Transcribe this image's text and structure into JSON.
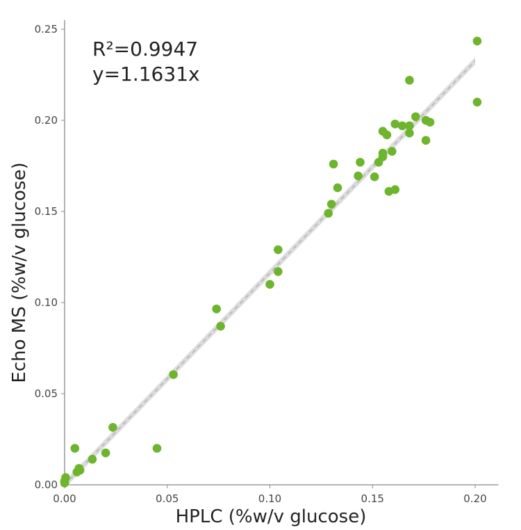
{
  "chart_data": {
    "type": "scatter",
    "xlabel": "HPLC (%w/v glucose)",
    "ylabel": "Echo MS (%w/v glucose)",
    "xlim": [
      0,
      0.21
    ],
    "ylim": [
      0,
      0.255
    ],
    "xticks": [
      "0.00",
      "0.05",
      "0.10",
      "0.15",
      "0.20"
    ],
    "yticks": [
      "0.00",
      "0.05",
      "0.10",
      "0.15",
      "0.20",
      "0.25"
    ],
    "grid": false,
    "annotations": [
      "R²=0.9947",
      "y=1.1631x"
    ],
    "fit": {
      "slope": 1.1631,
      "style": "dashed",
      "confidence_band": true
    },
    "colors": {
      "points": "#6db52d",
      "fit_line": "#aaaaaa",
      "band": "#dcdcdc",
      "axis": "#888888"
    },
    "points": [
      [
        0.201,
        0.2435
      ],
      [
        0.201,
        0.21
      ],
      [
        0.168,
        0.222
      ],
      [
        0.171,
        0.202
      ],
      [
        0.176,
        0.2
      ],
      [
        0.178,
        0.199
      ],
      [
        0.1645,
        0.197
      ],
      [
        0.168,
        0.197
      ],
      [
        0.168,
        0.193
      ],
      [
        0.161,
        0.198
      ],
      [
        0.155,
        0.194
      ],
      [
        0.157,
        0.192
      ],
      [
        0.176,
        0.189
      ],
      [
        0.1595,
        0.183
      ],
      [
        0.155,
        0.182
      ],
      [
        0.155,
        0.18
      ],
      [
        0.153,
        0.177
      ],
      [
        0.144,
        0.177
      ],
      [
        0.131,
        0.176
      ],
      [
        0.143,
        0.1695
      ],
      [
        0.151,
        0.169
      ],
      [
        0.133,
        0.163
      ],
      [
        0.161,
        0.162
      ],
      [
        0.158,
        0.161
      ],
      [
        0.13,
        0.154
      ],
      [
        0.1285,
        0.149
      ],
      [
        0.104,
        0.129
      ],
      [
        0.104,
        0.117
      ],
      [
        0.1,
        0.11
      ],
      [
        0.074,
        0.0965
      ],
      [
        0.076,
        0.087
      ],
      [
        0.053,
        0.0605
      ],
      [
        0.0235,
        0.0315
      ],
      [
        0.005,
        0.02
      ],
      [
        0.045,
        0.02
      ],
      [
        0.02,
        0.0175
      ],
      [
        0.0135,
        0.014
      ],
      [
        0.007,
        0.009
      ],
      [
        0.0075,
        0.008
      ],
      [
        0.006,
        0.007
      ],
      [
        0.0005,
        0.004
      ],
      [
        0.0,
        0.002
      ],
      [
        0.0,
        0.001
      ]
    ]
  }
}
